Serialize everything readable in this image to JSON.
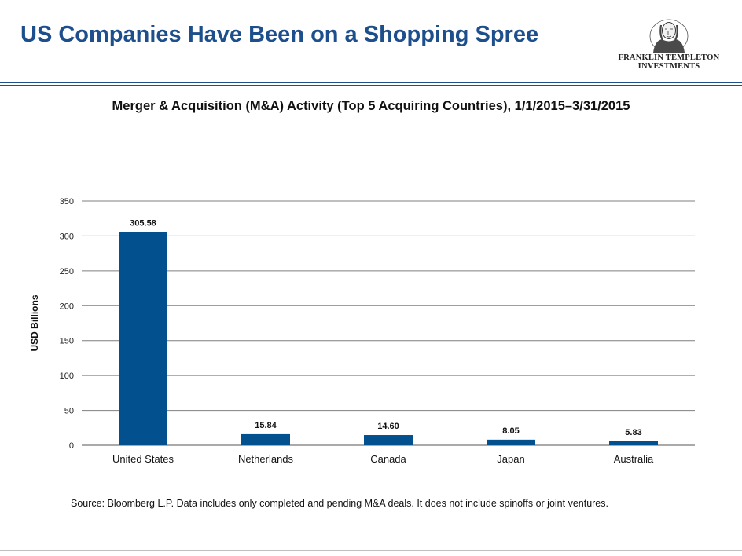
{
  "slide": {
    "title": "US Companies Have Been on a Shopping Spree"
  },
  "logo": {
    "line1": "FRANKLIN TEMPLETON",
    "line2": "INVESTMENTS"
  },
  "colors": {
    "title": "#1d4f8c",
    "bar": "#03508f",
    "gridline": "#7f7f7f",
    "rule": "#1d4f8c"
  },
  "chart_data": {
    "type": "bar",
    "title": "Merger & Acquisition (M&A) Activity (Top 5 Acquiring Countries), 1/1/2015–3/31/2015",
    "xlabel": "",
    "ylabel": "USD Billions",
    "categories": [
      "United States",
      "Netherlands",
      "Canada",
      "Japan",
      "Australia"
    ],
    "values": [
      305.58,
      15.84,
      14.6,
      8.05,
      5.83
    ],
    "data_labels": [
      "305.58",
      "15.84",
      "14.60",
      "8.05",
      "5.83"
    ],
    "ylim": [
      0,
      350
    ],
    "yticks": [
      0,
      50,
      100,
      150,
      200,
      250,
      300,
      350
    ],
    "grid": true,
    "legend": "none"
  },
  "footnote": {
    "source": "Source: Bloomberg L.P. Data includes only completed and pending M&A deals. It does not include spinoffs or joint ventures."
  }
}
